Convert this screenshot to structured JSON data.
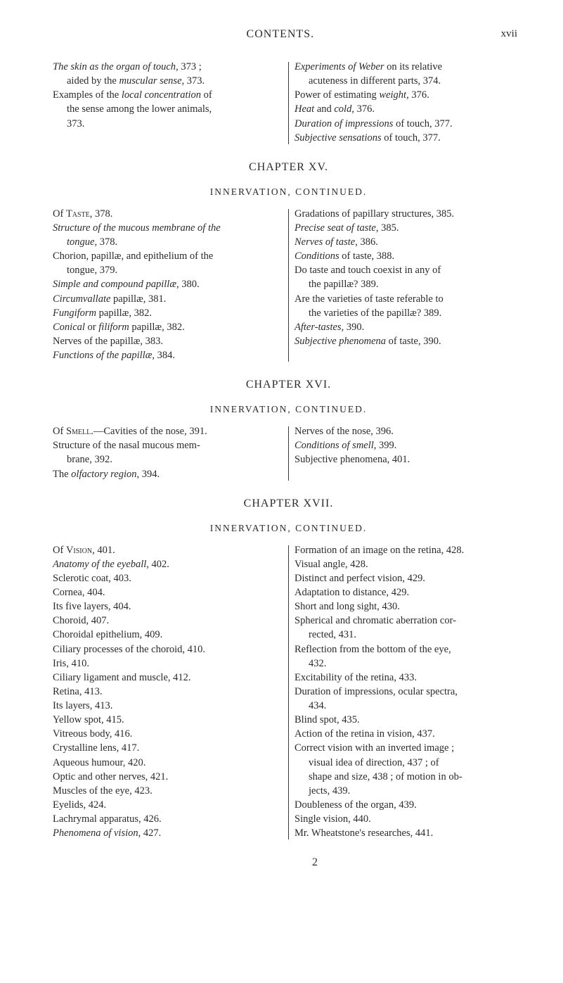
{
  "header": {
    "center": "CONTENTS.",
    "page_num": "xvii"
  },
  "block1": {
    "left": [
      {
        "text": "The skin as the organ of touch, 373 ;",
        "spans": [
          {
            "t": "The skin as the organ of touch",
            "i": true
          },
          {
            "t": ", 373 ;",
            "i": false
          }
        ]
      },
      {
        "text": "aided by the muscular sense, 373.",
        "indent": true,
        "spans": [
          {
            "t": "aided by the ",
            "i": false
          },
          {
            "t": "muscular sense",
            "i": true
          },
          {
            "t": ", 373.",
            "i": false
          }
        ]
      },
      {
        "text": "Examples of the local concentration of",
        "spans": [
          {
            "t": "Examples of the ",
            "i": false
          },
          {
            "t": "local concentration",
            "i": true
          },
          {
            "t": " of",
            "i": false
          }
        ]
      },
      {
        "text": "the sense among the lower animals,",
        "indent": true
      },
      {
        "text": "373.",
        "indent": true
      }
    ],
    "right": [
      {
        "spans": [
          {
            "t": "Experiments of Weber",
            "i": true
          },
          {
            "t": " on its relative",
            "i": false
          }
        ]
      },
      {
        "text": "acuteness in different parts, 374.",
        "indent": true
      },
      {
        "spans": [
          {
            "t": "Power of estimating ",
            "i": false
          },
          {
            "t": "weight",
            "i": true
          },
          {
            "t": ", 376.",
            "i": false
          }
        ]
      },
      {
        "spans": [
          {
            "t": "Heat",
            "i": true
          },
          {
            "t": " and ",
            "i": false
          },
          {
            "t": "cold",
            "i": true
          },
          {
            "t": ", 376.",
            "i": false
          }
        ]
      },
      {
        "spans": [
          {
            "t": "Duration of impressions",
            "i": true
          },
          {
            "t": " of touch, 377.",
            "i": false
          }
        ]
      },
      {
        "spans": [
          {
            "t": "Subjective sensations",
            "i": true
          },
          {
            "t": " of touch, 377.",
            "i": false
          }
        ]
      }
    ]
  },
  "chapter15": {
    "title": "CHAPTER XV.",
    "sub": "INNERVATION, CONTINUED."
  },
  "block2": {
    "left": [
      {
        "spans": [
          {
            "t": "Of ",
            "i": false
          },
          {
            "t": "Taste",
            "sc": true
          },
          {
            "t": ", 378.",
            "i": false
          }
        ]
      },
      {
        "spans": [
          {
            "t": "Structure of the mucous membrane of the",
            "i": true
          }
        ]
      },
      {
        "spans": [
          {
            "t": "tongue",
            "i": true
          },
          {
            "t": ", 378.",
            "i": false
          }
        ],
        "indent": true
      },
      {
        "text": "Chorion, papillæ, and epithelium of the"
      },
      {
        "text": "tongue, 379.",
        "indent": true
      },
      {
        "spans": [
          {
            "t": "Simple and compound papillæ",
            "i": true
          },
          {
            "t": ", 380.",
            "i": false
          }
        ]
      },
      {
        "spans": [
          {
            "t": "Circumvallate",
            "i": true
          },
          {
            "t": " papillæ, 381.",
            "i": false
          }
        ]
      },
      {
        "spans": [
          {
            "t": "Fungiform",
            "i": true
          },
          {
            "t": " papillæ, 382.",
            "i": false
          }
        ]
      },
      {
        "spans": [
          {
            "t": "Conical",
            "i": true
          },
          {
            "t": " or ",
            "i": false
          },
          {
            "t": "filiform",
            "i": true
          },
          {
            "t": " papillæ, 382.",
            "i": false
          }
        ]
      },
      {
        "text": "Nerves of the papillæ, 383."
      },
      {
        "spans": [
          {
            "t": "Functions of the papillæ",
            "i": true
          },
          {
            "t": ", 384.",
            "i": false
          }
        ]
      }
    ],
    "right": [
      {
        "text": "Gradations of papillary structures, 385."
      },
      {
        "spans": [
          {
            "t": "Precise seat of taste",
            "i": true
          },
          {
            "t": ", 385.",
            "i": false
          }
        ]
      },
      {
        "spans": [
          {
            "t": "Nerves of taste",
            "i": true
          },
          {
            "t": ", 386.",
            "i": false
          }
        ]
      },
      {
        "spans": [
          {
            "t": "Conditions",
            "i": true
          },
          {
            "t": " of taste, 388.",
            "i": false
          }
        ]
      },
      {
        "text": "Do taste and touch coexist in any of"
      },
      {
        "text": "the papillæ? 389.",
        "indent": true
      },
      {
        "text": "Are the varieties of taste referable to"
      },
      {
        "text": "the varieties of the papillæ? 389.",
        "indent": true
      },
      {
        "spans": [
          {
            "t": "After-tastes",
            "i": true
          },
          {
            "t": ", 390.",
            "i": false
          }
        ]
      },
      {
        "spans": [
          {
            "t": "Subjective phenomena",
            "i": true
          },
          {
            "t": " of taste, 390.",
            "i": false
          }
        ]
      }
    ]
  },
  "chapter16": {
    "title": "CHAPTER XVI.",
    "sub": "INNERVATION, CONTINUED."
  },
  "block3": {
    "left": [
      {
        "spans": [
          {
            "t": "Of ",
            "i": false
          },
          {
            "t": "Smell",
            "sc": true
          },
          {
            "t": ".—Cavities of the nose, 391.",
            "i": false
          }
        ]
      },
      {
        "text": "Structure of the nasal mucous mem-"
      },
      {
        "text": "brane, 392.",
        "indent": true
      },
      {
        "spans": [
          {
            "t": "The ",
            "i": false
          },
          {
            "t": "olfactory region",
            "i": true
          },
          {
            "t": ", 394.",
            "i": false
          }
        ]
      }
    ],
    "right": [
      {
        "text": "Nerves of the nose, 396."
      },
      {
        "spans": [
          {
            "t": "Conditions of smell",
            "i": true
          },
          {
            "t": ", 399.",
            "i": false
          }
        ]
      },
      {
        "text": "Subjective phenomena, 401."
      }
    ]
  },
  "chapter17": {
    "title": "CHAPTER XVII.",
    "sub": "INNERVATION, CONTINUED."
  },
  "block4": {
    "left": [
      {
        "spans": [
          {
            "t": "Of ",
            "i": false
          },
          {
            "t": "Vision",
            "sc": true
          },
          {
            "t": ", 401.",
            "i": false
          }
        ]
      },
      {
        "spans": [
          {
            "t": "Anatomy of the eyeball",
            "i": true
          },
          {
            "t": ", 402.",
            "i": false
          }
        ]
      },
      {
        "text": "Sclerotic coat, 403."
      },
      {
        "text": "Cornea, 404."
      },
      {
        "text": "Its five layers, 404."
      },
      {
        "text": "Choroid, 407."
      },
      {
        "text": "Choroidal epithelium, 409."
      },
      {
        "text": "Ciliary processes of the choroid, 410."
      },
      {
        "text": "Iris, 410."
      },
      {
        "text": "Ciliary ligament and muscle, 412."
      },
      {
        "text": "Retina, 413."
      },
      {
        "text": "Its layers, 413."
      },
      {
        "text": "Yellow spot, 415."
      },
      {
        "text": "Vitreous body, 416."
      },
      {
        "text": "Crystalline lens, 417."
      },
      {
        "text": "Aqueous humour, 420."
      },
      {
        "text": "Optic and other nerves, 421."
      },
      {
        "text": "Muscles of the eye, 423."
      },
      {
        "text": "Eyelids, 424."
      },
      {
        "text": "Lachrymal apparatus, 426."
      },
      {
        "spans": [
          {
            "t": "Phenomena of vision",
            "i": true
          },
          {
            "t": ", 427.",
            "i": false
          }
        ]
      }
    ],
    "right": [
      {
        "text": "Formation of an image on the retina, 428."
      },
      {
        "text": "Visual angle, 428."
      },
      {
        "text": "Distinct and perfect vision, 429."
      },
      {
        "text": "Adaptation to distance, 429."
      },
      {
        "text": "Short and long sight, 430."
      },
      {
        "text": "Spherical and chromatic aberration cor-"
      },
      {
        "text": "rected, 431.",
        "indent": true
      },
      {
        "text": "Reflection from the bottom of the eye,"
      },
      {
        "text": "432.",
        "indent": true
      },
      {
        "text": "Excitability of the retina, 433."
      },
      {
        "text": "Duration of impressions, ocular spectra,"
      },
      {
        "text": "434.",
        "indent": true
      },
      {
        "text": "Blind spot, 435."
      },
      {
        "text": "Action of the retina in vision, 437."
      },
      {
        "text": "Correct vision with an inverted image ;"
      },
      {
        "text": "visual idea of direction, 437 ; of",
        "indent": true
      },
      {
        "text": "shape and size, 438 ; of motion in ob-",
        "indent": true
      },
      {
        "text": "jects, 439.",
        "indent": true
      },
      {
        "text": "Doubleness of the organ, 439."
      },
      {
        "text": "Single vision, 440."
      },
      {
        "text": "Mr. Wheatstone's researches, 441."
      }
    ]
  },
  "footer": {
    "num": "2"
  }
}
